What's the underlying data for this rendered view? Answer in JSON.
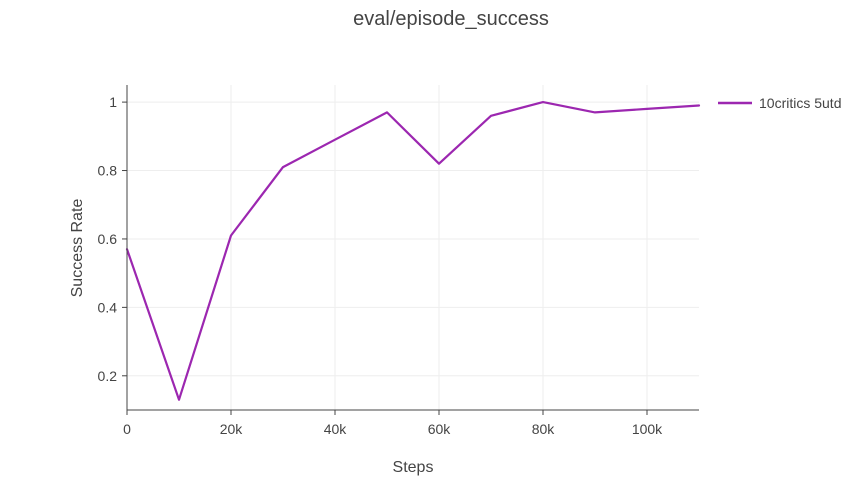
{
  "chart_data": {
    "type": "line",
    "title": "eval/episode_success",
    "xlabel": "Steps",
    "ylabel": "Success Rate",
    "xlim": [
      0,
      110000
    ],
    "ylim": [
      0.1,
      1.05
    ],
    "x_ticks": [
      0,
      20000,
      40000,
      60000,
      80000,
      100000
    ],
    "x_tick_labels": [
      "0",
      "20k",
      "40k",
      "60k",
      "80k",
      "100k"
    ],
    "y_ticks": [
      0.2,
      0.4,
      0.6,
      0.8,
      1
    ],
    "y_tick_labels": [
      "0.2",
      "0.4",
      "0.6",
      "0.8",
      "1"
    ],
    "grid": true,
    "legend_position": "top-right",
    "series": [
      {
        "name": "10critics 5utd",
        "color": "#9c27b0",
        "x": [
          0,
          10000,
          20000,
          30000,
          40000,
          50000,
          60000,
          70000,
          80000,
          90000,
          100000,
          110000
        ],
        "y": [
          0.57,
          0.13,
          0.61,
          0.81,
          0.89,
          0.97,
          0.82,
          0.96,
          1.0,
          0.97,
          0.98,
          0.99
        ]
      }
    ]
  }
}
